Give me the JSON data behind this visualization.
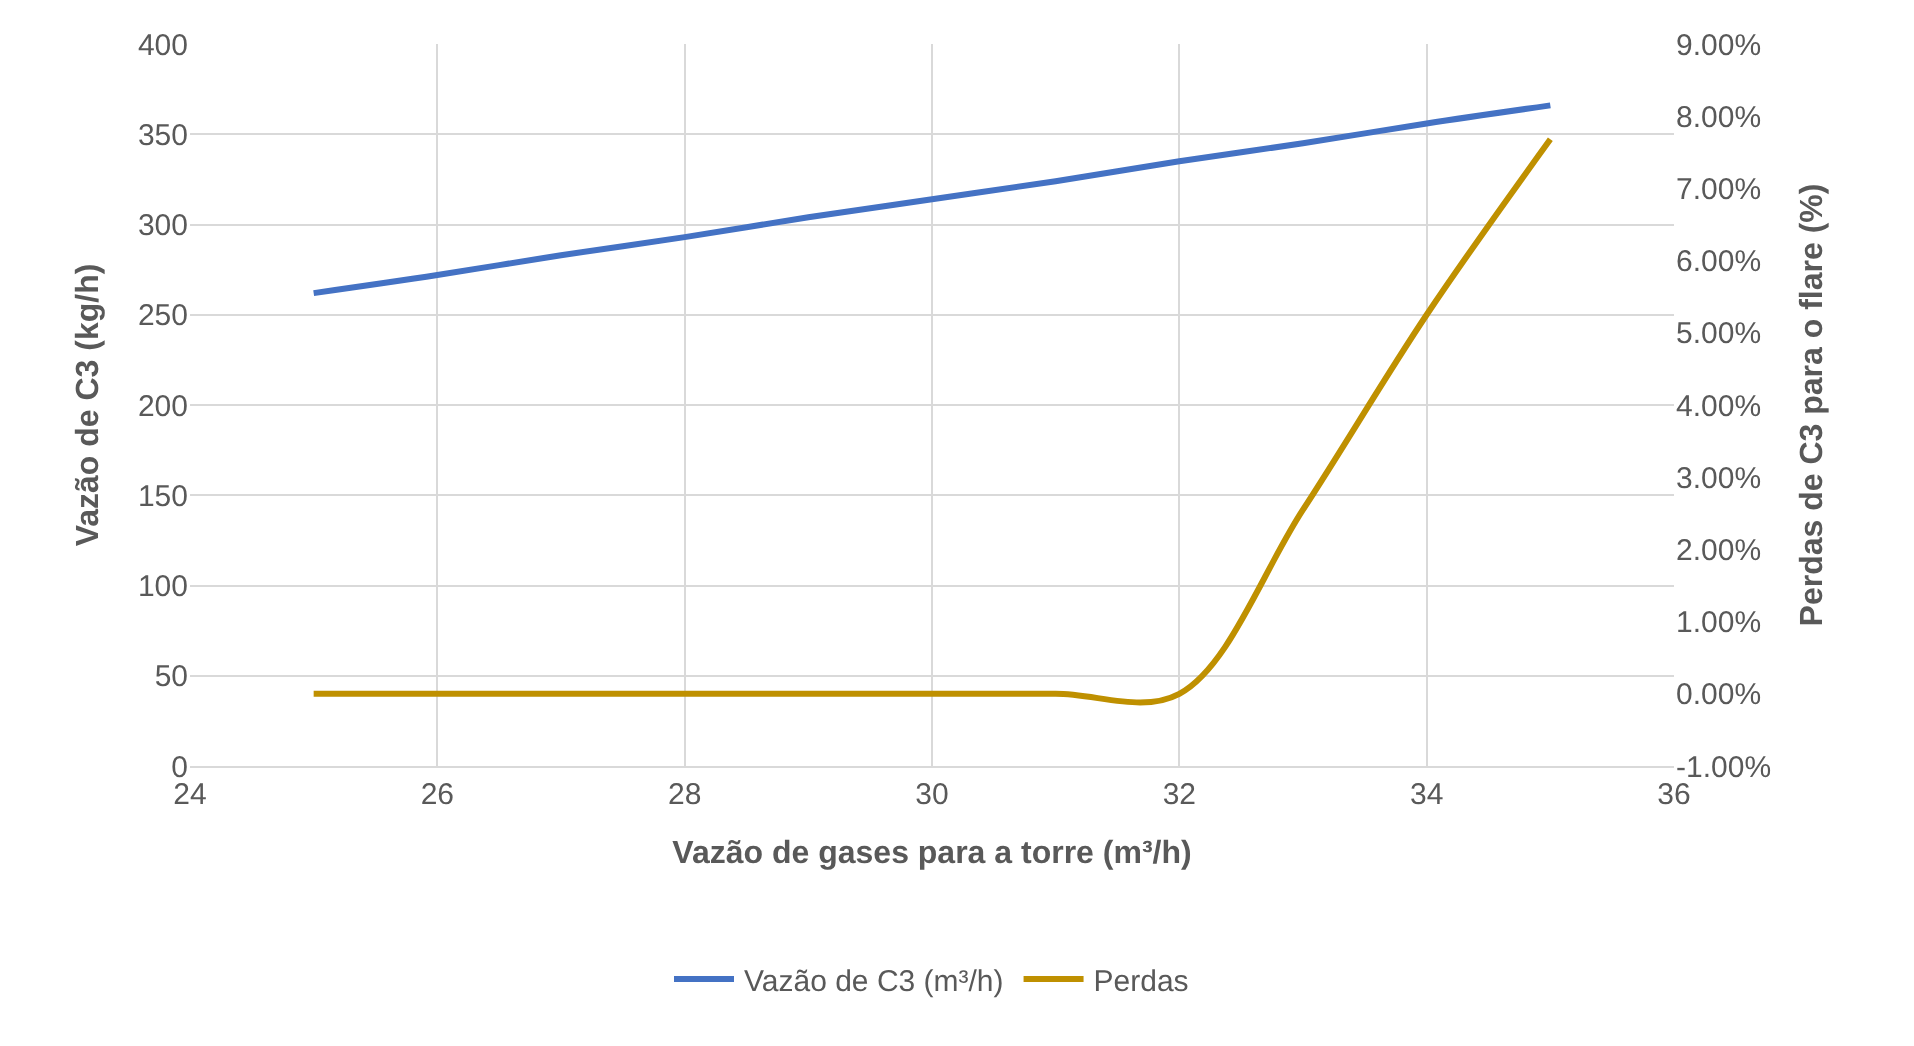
{
  "chart_data": {
    "type": "line",
    "xlabel": "Vazão de gases para a torre (m³/h)",
    "ylabel": "Vazão de C3 (kg/h)",
    "y2label": "Perdas de C3 para o flare (%)",
    "x": [
      25,
      26,
      27,
      28,
      29,
      30,
      31,
      32,
      33,
      34,
      35
    ],
    "series": [
      {
        "name": "Vazão de C3 (m³/h)",
        "color": "#4472c4",
        "values": [
          262,
          272,
          283,
          293,
          304,
          314,
          324,
          335,
          345,
          356,
          366
        ]
      },
      {
        "name": "Perdas",
        "color": "#bf9000",
        "axis": "y2",
        "values": [
          0,
          0,
          0,
          0,
          0,
          0,
          0,
          0,
          2.55,
          5.25,
          7.68
        ]
      }
    ],
    "xlim": [
      24,
      36
    ],
    "xticks": [
      24,
      26,
      28,
      30,
      32,
      34,
      36
    ],
    "ylim": [
      0,
      400
    ],
    "yticks": [
      0,
      50,
      100,
      150,
      200,
      250,
      300,
      350,
      400
    ],
    "y2lim": [
      -1,
      9
    ],
    "y2ticks": [
      {
        "value": -1,
        "label": "-1.00%"
      },
      {
        "value": 0,
        "label": "0.00%"
      },
      {
        "value": 1,
        "label": "1.00%"
      },
      {
        "value": 2,
        "label": "2.00%"
      },
      {
        "value": 3,
        "label": "3.00%"
      },
      {
        "value": 4,
        "label": "4.00%"
      },
      {
        "value": 5,
        "label": "5.00%"
      },
      {
        "value": 6,
        "label": "6.00%"
      },
      {
        "value": 7,
        "label": "7.00%"
      },
      {
        "value": 8,
        "label": "8.00%"
      },
      {
        "value": 9,
        "label": "9.00%"
      }
    ],
    "grid": true,
    "legend": "bottom",
    "marker": "none",
    "line_style": "solid"
  }
}
